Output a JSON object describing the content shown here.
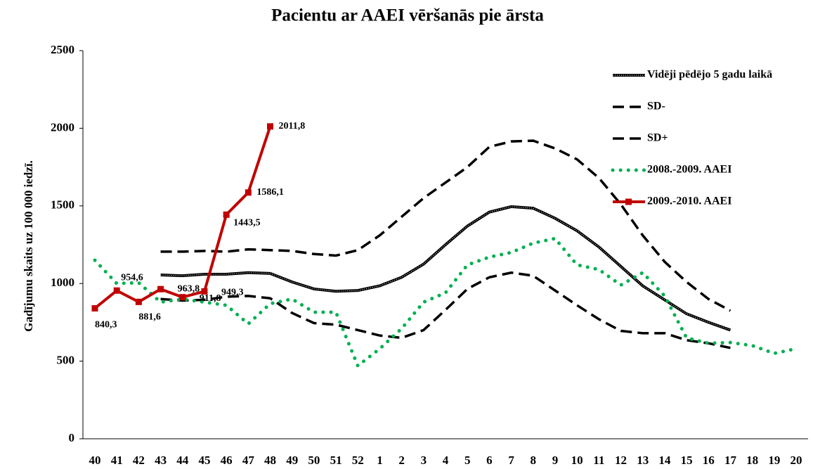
{
  "chart_data": {
    "type": "line",
    "title": "Pacientu ar AAEI vēršanās pie ārsta",
    "ylabel": "Gadījumu skaits uz 100 000 iedzī.",
    "categories": [
      "40",
      "41",
      "42",
      "43",
      "44",
      "45",
      "46",
      "47",
      "48",
      "49",
      "50",
      "51",
      "52",
      "1",
      "2",
      "3",
      "4",
      "5",
      "6",
      "7",
      "8",
      "9",
      "10",
      "11",
      "12",
      "13",
      "14",
      "15",
      "16",
      "17",
      "18",
      "19",
      "20"
    ],
    "ylim": [
      0,
      2500
    ],
    "yticks": [
      0,
      500,
      1000,
      1500,
      2000,
      2500
    ],
    "legend": "top-right",
    "series": [
      {
        "name": "Vidēji  pēdējo 5 gadu laikā",
        "color": "#000000",
        "style": "double",
        "values": [
          null,
          null,
          null,
          1055,
          1050,
          1060,
          1060,
          1070,
          1065,
          1010,
          965,
          950,
          955,
          985,
          1040,
          1125,
          1250,
          1370,
          1460,
          1495,
          1485,
          1420,
          1340,
          1235,
          1110,
          985,
          895,
          805,
          750,
          700,
          null,
          null,
          null
        ]
      },
      {
        "name": "SD-",
        "color": "#000000",
        "style": "dashed",
        "values": [
          null,
          null,
          null,
          900,
          890,
          895,
          915,
          920,
          905,
          810,
          745,
          735,
          700,
          665,
          650,
          700,
          830,
          965,
          1040,
          1070,
          1050,
          955,
          860,
          770,
          695,
          680,
          680,
          635,
          615,
          585,
          null,
          null,
          null
        ]
      },
      {
        "name": "SD+",
        "color": "#000000",
        "style": "dashed",
        "values": [
          null,
          null,
          null,
          1205,
          1205,
          1210,
          1205,
          1220,
          1215,
          1210,
          1190,
          1180,
          1215,
          1310,
          1430,
          1550,
          1650,
          1750,
          1880,
          1915,
          1920,
          1870,
          1800,
          1680,
          1510,
          1310,
          1140,
          1010,
          900,
          825,
          null,
          null,
          null
        ]
      },
      {
        "name": "2008.-2009. AAEI",
        "color": "#00b050",
        "style": "dotted",
        "values": [
          1150,
          1000,
          1005,
          880,
          900,
          880,
          860,
          740,
          870,
          900,
          815,
          815,
          470,
          580,
          710,
          880,
          940,
          1120,
          1170,
          1200,
          1260,
          1290,
          1120,
          1090,
          990,
          1070,
          920,
          650,
          615,
          620,
          600,
          550,
          580
        ]
      },
      {
        "name": "2009.-2010. AAEI",
        "color": "#c00000",
        "style": "solid",
        "marker": "square",
        "values": [
          840.3,
          954.6,
          881.6,
          963.8,
          911.8,
          949.3,
          1443.5,
          1586.1,
          2011.8,
          null,
          null,
          null,
          null,
          null,
          null,
          null,
          null,
          null,
          null,
          null,
          null,
          null,
          null,
          null,
          null,
          null,
          null,
          null,
          null,
          null,
          null,
          null,
          null
        ],
        "value_labels": [
          "840,3",
          "954,6",
          "881,6",
          "963,8",
          "911,8",
          "949,3",
          "1443,5",
          "1586,1",
          "2011,8",
          null,
          null,
          null,
          null,
          null,
          null,
          null,
          null,
          null,
          null,
          null,
          null,
          null,
          null,
          null,
          null,
          null,
          null,
          null,
          null,
          null,
          null,
          null,
          null
        ]
      }
    ]
  }
}
